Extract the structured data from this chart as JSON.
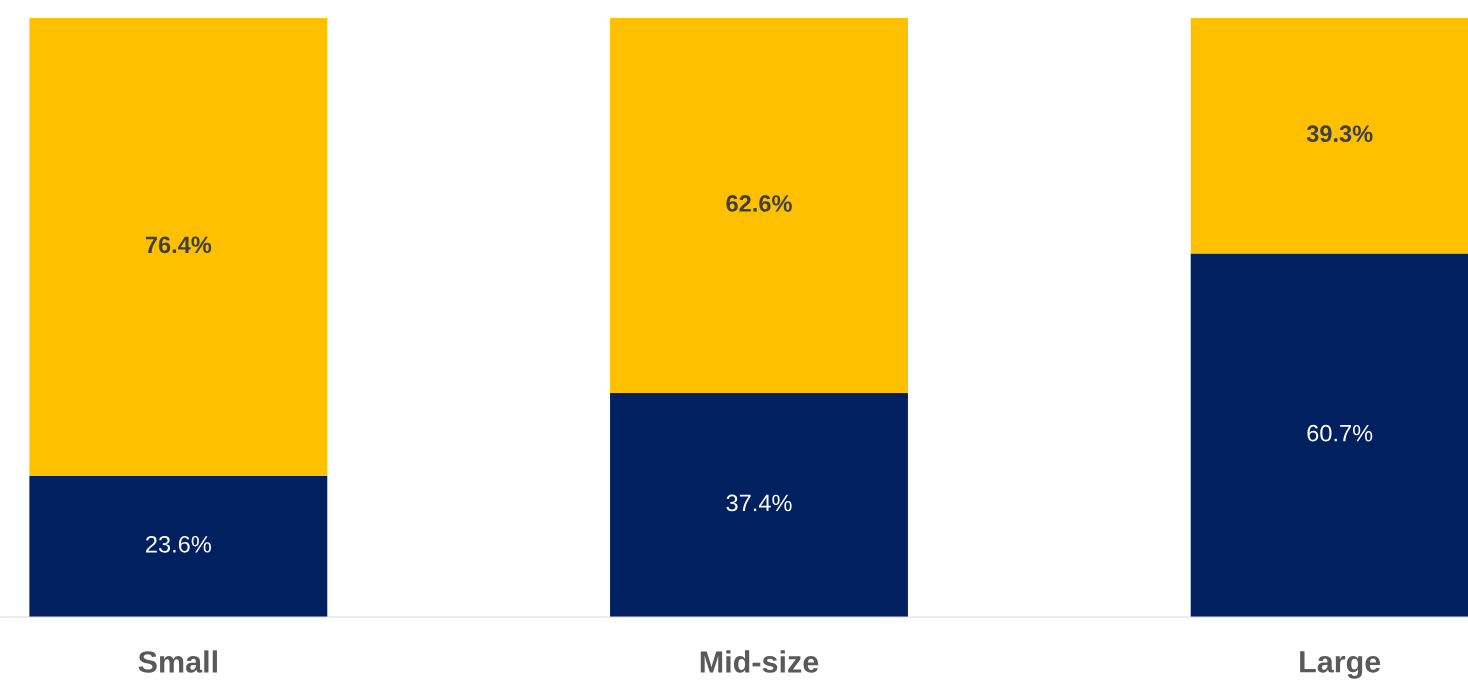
{
  "chart_data": {
    "type": "bar",
    "stacked": true,
    "categories": [
      "Small",
      "Mid-size",
      "Large"
    ],
    "series": [
      {
        "color": "#002060",
        "values": [
          23.6,
          37.4,
          60.7
        ],
        "value_labels": [
          "23.6%",
          "37.4%",
          "60.7%"
        ]
      },
      {
        "color": "#ffc000",
        "values": [
          76.4,
          62.6,
          39.3
        ],
        "value_labels": [
          "76.4%",
          "62.6%",
          "39.3%"
        ]
      }
    ],
    "grid": false,
    "legend": false,
    "tick_labels": "x"
  }
}
